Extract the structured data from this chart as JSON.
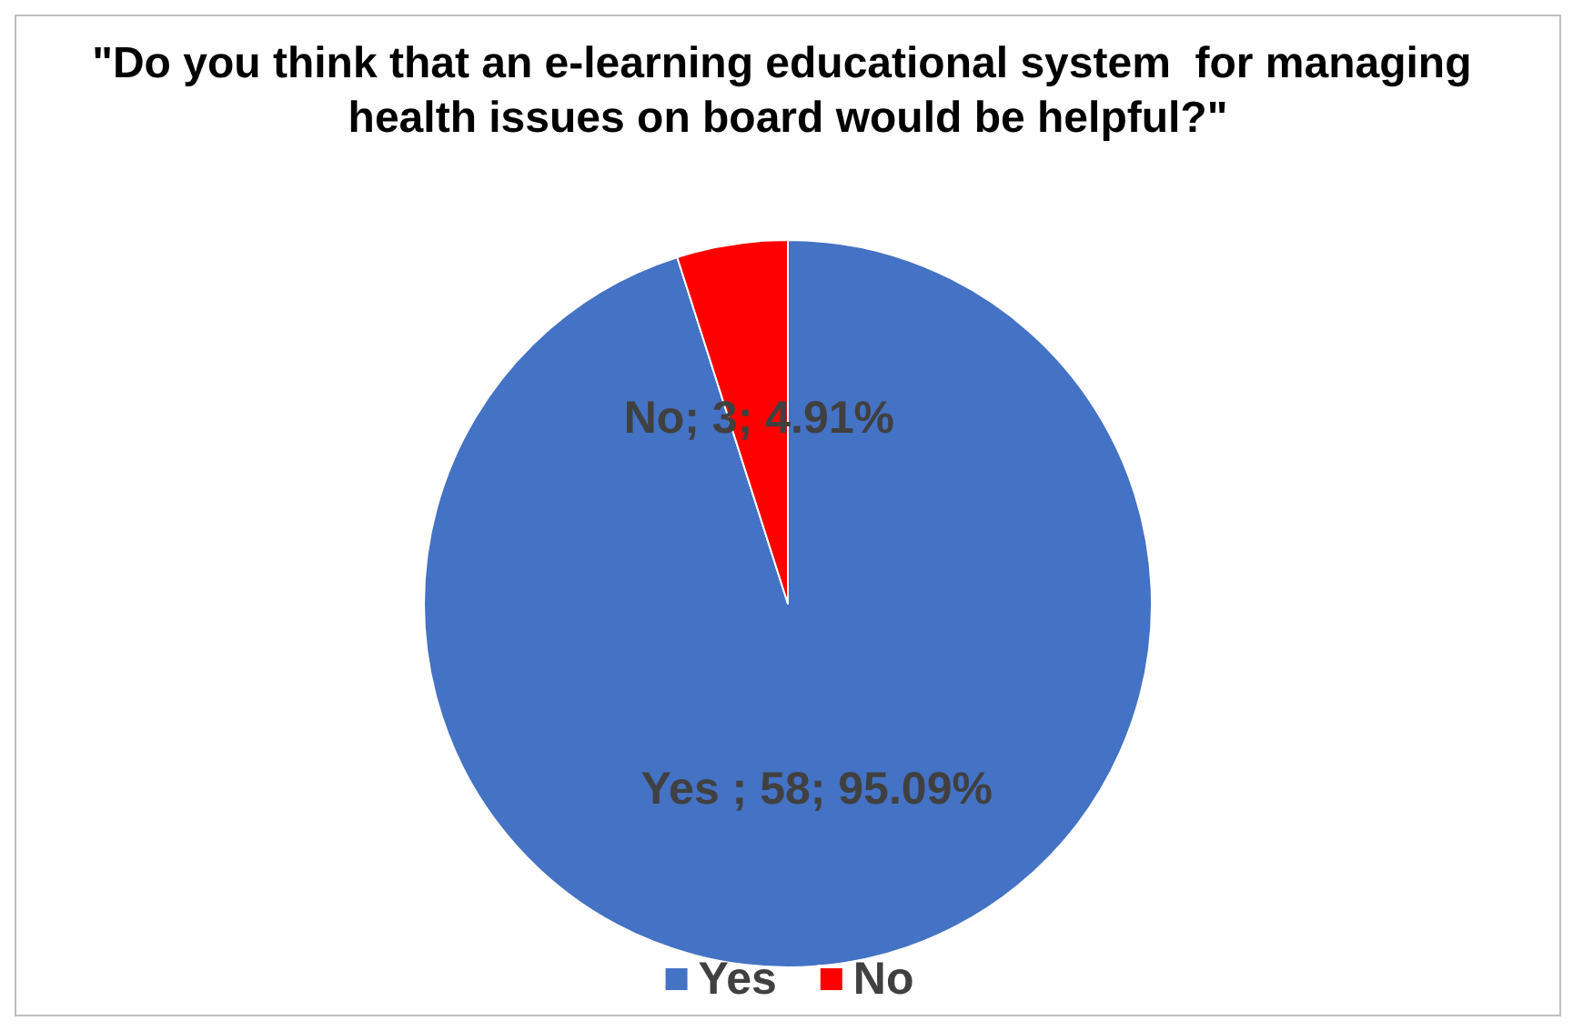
{
  "chart_data": {
    "type": "pie",
    "title": "\"Do you think that an e-learning educational system  for managing health issues on board would be helpful?\"",
    "categories": [
      "Yes",
      "No"
    ],
    "values": [
      58,
      3
    ],
    "colors": [
      "#4472c4",
      "#ff0000"
    ],
    "value_labels": [
      "Yes ; 58; 95.09%",
      "No; 3; 4.91%"
    ],
    "legend": "bottom"
  }
}
